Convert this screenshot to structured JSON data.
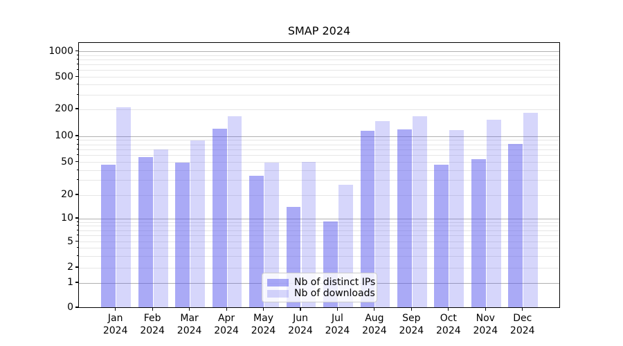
{
  "title": "SMAP 2024",
  "chart_data": {
    "type": "bar",
    "title": "SMAP 2024",
    "yscale": "symlog",
    "grid": "both",
    "legend_position": "lower center",
    "categories": [
      "Jan 2024",
      "Feb 2024",
      "Mar 2024",
      "Apr 2024",
      "May 2024",
      "Jun 2024",
      "Jul 2024",
      "Aug 2024",
      "Sep 2024",
      "Oct 2024",
      "Nov 2024",
      "Dec 2024"
    ],
    "series": [
      {
        "name": "Nb of distinct IPs",
        "color": "rgba(85,85,238,0.5)",
        "values": [
          46,
          56,
          49,
          120,
          34,
          14,
          9,
          113,
          118,
          46,
          53,
          80
        ]
      },
      {
        "name": "Nb of downloads",
        "color": "rgba(85,85,238,0.24)",
        "values": [
          210,
          69,
          88,
          165,
          49,
          50,
          26,
          145,
          165,
          115,
          150,
          180
        ]
      }
    ],
    "yticks": [
      0,
      1,
      2,
      5,
      10,
      20,
      50,
      100,
      200,
      500,
      1000
    ],
    "ylim": [
      0,
      1270
    ]
  },
  "colors": {
    "background": "#ffffff",
    "spine": "#000000",
    "grid_major": "#b0b0b0",
    "grid_minor": "#e6e6e6",
    "tick": "#000000"
  }
}
